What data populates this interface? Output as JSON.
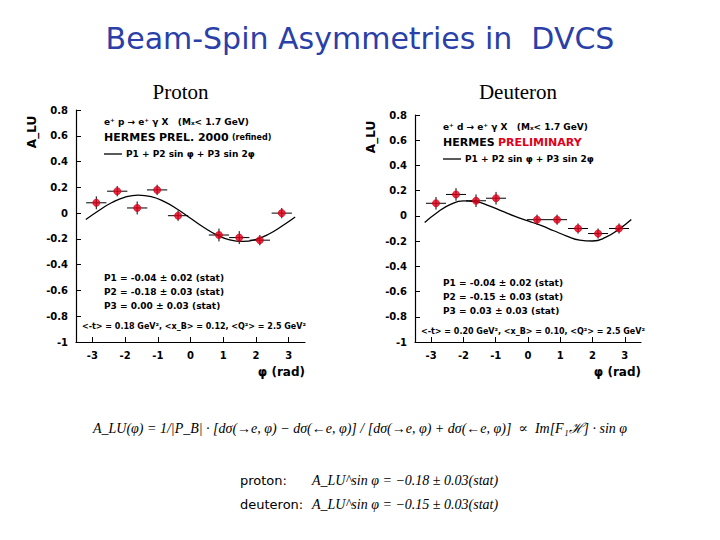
{
  "slide": {
    "title": "Beam-Spin Asymmetries in  DVCS",
    "formula": "A_LU(φ) = 1/|P_B| · [dσ(→e, φ) − dσ(←e, φ)] / [dσ(→e, φ) + dσ(←e, φ)]  ∝  Im[F₁ℋ] · sin φ",
    "results": [
      {
        "label": "proton:",
        "text": "A_LU^sin φ = −0.18 ± 0.03(stat)"
      },
      {
        "label": "deuteron:",
        "text": "A_LU^sin φ = −0.15 ± 0.03(stat)"
      }
    ]
  },
  "chart_data": [
    {
      "type": "scatter",
      "title": "Proton",
      "xlabel": "φ (rad)",
      "ylabel": "A_LU",
      "xlim": [
        -3.5,
        3.5
      ],
      "xticks": [
        -3,
        -2,
        -1,
        0,
        1,
        2,
        3
      ],
      "ylim": [
        -1,
        0.8
      ],
      "yticks": [
        -1,
        -0.8,
        -0.6,
        -0.4,
        -0.2,
        0,
        0.2,
        0.4,
        0.6,
        0.8
      ],
      "grid": false,
      "reaction": "e⁺ p → e⁺ γ X   (Mₓ< 1.7 GeV)",
      "experiment": "HERMES",
      "status": "PREL. 2000",
      "note": "(refined)",
      "fit_label": "P1 + P2 sin φ + P3 sin 2φ",
      "parameters": [
        "P1 = -0.04 ± 0.02 (stat)",
        "P2 = -0.18 ± 0.03 (stat)",
        "P3 = 0.00 ± 0.03 (stat)"
      ],
      "kinematics": "<-t> = 0.18 GeV², <x_B> = 0.12, <Q²> = 2.5 GeV²",
      "series": [
        {
          "type": "line",
          "color": "#000000",
          "line_style": "solid",
          "x": [
            -3.2,
            -2.8,
            -2.4,
            -2.0,
            -1.6,
            -1.2,
            -0.8,
            -0.4,
            0,
            0.4,
            0.8,
            1.2,
            1.6,
            2.0,
            2.4,
            2.8,
            3.2
          ],
          "values": [
            -0.05,
            0.02,
            0.082,
            0.124,
            0.14,
            0.128,
            0.089,
            0.03,
            -0.04,
            -0.11,
            -0.169,
            -0.208,
            -0.22,
            -0.204,
            -0.162,
            -0.1,
            -0.03
          ]
        },
        {
          "type": "scatter",
          "color": "#e0001a",
          "marker": "circle",
          "x": [
            -2.88,
            -2.24,
            -1.63,
            -1.02,
            -0.38,
            0.87,
            1.49,
            2.12,
            2.79
          ],
          "values": [
            0.08,
            0.17,
            0.04,
            0.18,
            -0.02,
            -0.17,
            -0.19,
            -0.21,
            0.0
          ],
          "xerr": [
            0.31,
            0.31,
            0.31,
            0.31,
            0.31,
            0.31,
            0.31,
            0.31,
            0.31
          ],
          "yerr": [
            0.05,
            0.04,
            0.05,
            0.04,
            0.04,
            0.05,
            0.05,
            0.04,
            0.04
          ]
        }
      ]
    },
    {
      "type": "scatter",
      "title": "Deuteron",
      "xlabel": "φ (rad)",
      "ylabel": "A_LU",
      "xlim": [
        -3.5,
        3.5
      ],
      "xticks": [
        -3,
        -2,
        -1,
        0,
        1,
        2,
        3
      ],
      "ylim": [
        -1,
        0.8
      ],
      "yticks": [
        -1,
        -0.8,
        -0.6,
        -0.4,
        -0.2,
        0,
        0.2,
        0.4,
        0.6,
        0.8
      ],
      "grid": false,
      "reaction": "e⁺ d → e⁺ γ X   (Mₓ< 1.7 GeV)",
      "experiment": "HERMES",
      "status": "PRELIMINARY",
      "fit_label": "P1 + P2 sin φ + P3 sin 2φ",
      "parameters": [
        "P1 = -0.04 ± 0.02 (stat)",
        "P2 = -0.15 ± 0.03 (stat)",
        "P3 = 0.03 ± 0.03 (stat)"
      ],
      "kinematics": "<-t> = 0.20 GeV², <x_B> = 0.10, <Q²> = 2.5 GeV²",
      "series": [
        {
          "type": "line",
          "color": "#000000",
          "line_style": "solid",
          "x": [
            -3.2,
            -2.8,
            -2.4,
            -2.0,
            -1.6,
            -1.2,
            -0.8,
            -0.4,
            0,
            0.4,
            0.8,
            1.2,
            1.6,
            2.0,
            2.4,
            2.8,
            3.2
          ],
          "values": [
            -0.052,
            0.029,
            0.091,
            0.119,
            0.112,
            0.08,
            0.038,
            -0.004,
            -0.04,
            -0.076,
            -0.118,
            -0.16,
            -0.192,
            -0.199,
            -0.171,
            -0.109,
            -0.028
          ]
        },
        {
          "type": "scatter",
          "color": "#e0001a",
          "marker": "circle",
          "x": [
            -2.85,
            -2.23,
            -1.61,
            -0.99,
            0.28,
            0.9,
            1.55,
            2.17,
            2.82
          ],
          "values": [
            0.1,
            0.17,
            0.12,
            0.14,
            -0.03,
            -0.03,
            -0.1,
            -0.14,
            -0.1
          ],
          "xerr": [
            0.31,
            0.31,
            0.31,
            0.31,
            0.31,
            0.31,
            0.31,
            0.31,
            0.31
          ],
          "yerr": [
            0.05,
            0.05,
            0.05,
            0.05,
            0.04,
            0.04,
            0.04,
            0.04,
            0.04
          ]
        }
      ]
    }
  ]
}
